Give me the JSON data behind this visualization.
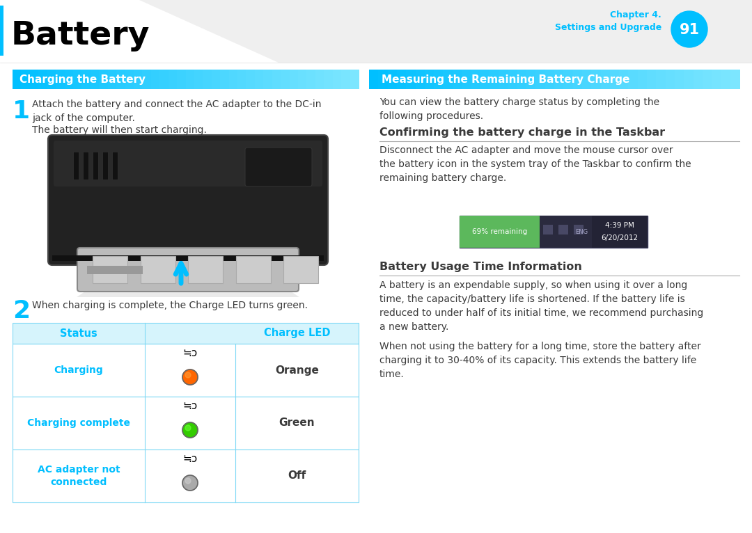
{
  "page_title": "Battery",
  "chapter_label": "Chapter 4.\nSettings and Upgrade",
  "page_number": "91",
  "cyan_color": "#00BFFF",
  "cyan_dark": "#00A8D4",
  "cyan_light": "#D6F4FC",
  "cyan_mid": "#7FD9F5",
  "black": "#000000",
  "white": "#FFFFFF",
  "dark_gray": "#3A3A3A",
  "mid_gray": "#888888",
  "light_gray": "#F5F5F5",
  "section_left_title": "Charging the Battery",
  "section_right_title": "Measuring the Remaining Battery Charge",
  "step1_number": "1",
  "step1_text": "Attach the battery and connect the AC adapter to the DC-in\njack of the computer.",
  "step1_sub": "The battery will then start charging.",
  "step2_number": "2",
  "step2_text": "When charging is complete, the Charge LED turns green.",
  "table_header_status": "Status",
  "table_header_led": "Charge LED",
  "table_rows": [
    {
      "status": "Charging",
      "led_color": "#FF6600",
      "led_label": "Orange",
      "led_inner": "#FF9933"
    },
    {
      "status": "Charging complete",
      "led_color": "#33CC00",
      "led_label": "Green",
      "led_inner": "#66FF33"
    },
    {
      "status": "AC adapter not\nconnected",
      "led_color": "#AAAAAA",
      "led_label": "Off",
      "led_inner": "#CCCCCC"
    }
  ],
  "right_intro": "You can view the battery charge status by completing the\nfollowing procedures.",
  "subsection1_title": "Confirming the battery charge in the Taskbar",
  "subsection1_text": "Disconnect the AC adapter and move the mouse cursor over\nthe battery icon in the system tray of the Taskbar to confirm the\nremaining battery charge.",
  "taskbar_text": "69% remaining",
  "taskbar_time": "4:39 PM",
  "taskbar_date": "6/20/2012",
  "subsection2_title": "Battery Usage Time Information",
  "subsection2_text1": "A battery is an expendable supply, so when using it over a long\ntime, the capacity/battery life is shortened. If the battery life is\nreduced to under half of its initial time, we recommend purchasing\na new battery.",
  "subsection2_text2": "When not using the battery for a long time, store the battery after\ncharging it to 30-40% of its capacity. This extends the battery life\ntime."
}
